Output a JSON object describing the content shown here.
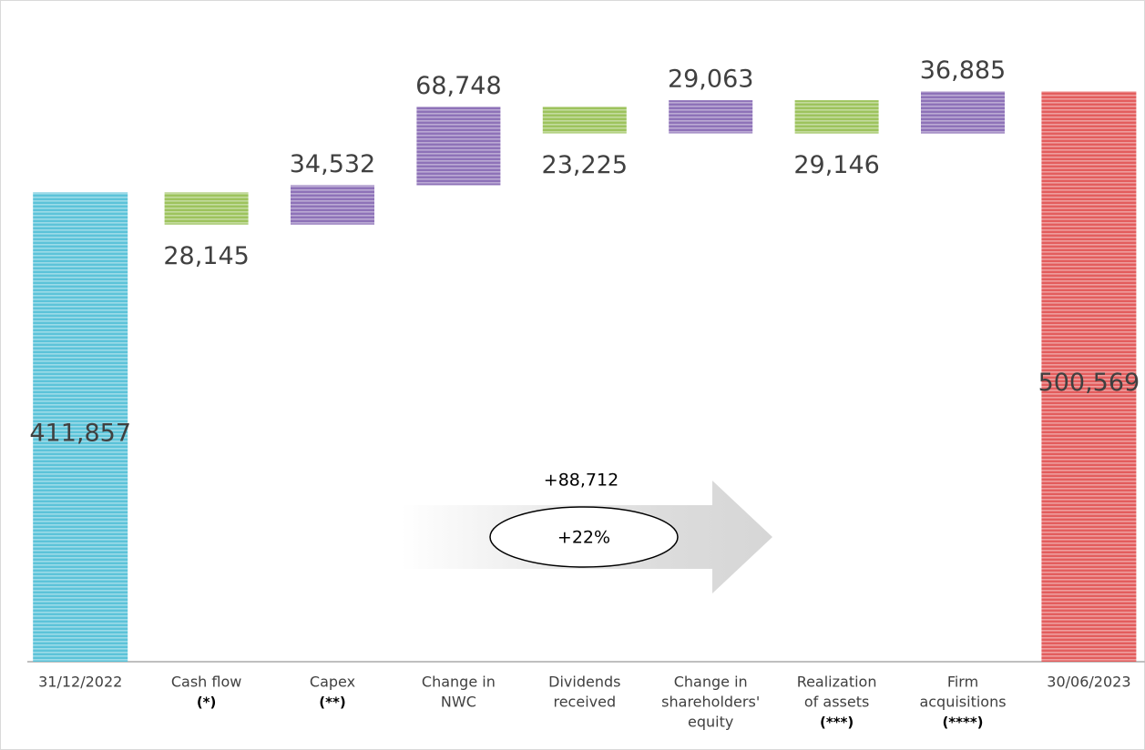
{
  "chart_data": {
    "type": "waterfall",
    "categories": [
      [
        "31/12/2022"
      ],
      [
        "Cash flow",
        "(*)"
      ],
      [
        "Capex",
        "(**)"
      ],
      [
        "Change in",
        "NWC"
      ],
      [
        "Dividends",
        "received"
      ],
      [
        "Change in",
        "shareholders'",
        "equity"
      ],
      [
        "Realization",
        "of assets",
        "(***)"
      ],
      [
        "Firm",
        "acquisitions",
        "(****)"
      ],
      [
        "30/06/2023"
      ]
    ],
    "values": [
      411857,
      -28145,
      34532,
      68748,
      -23225,
      29063,
      -29146,
      36885,
      500569
    ],
    "value_labels": [
      "411,857",
      "28,145",
      "34,532",
      "68,748",
      "23,225",
      "29,063",
      "29,146",
      "36,885",
      "500,569"
    ],
    "totals": [
      true,
      false,
      false,
      false,
      false,
      false,
      false,
      false,
      true
    ],
    "colors": [
      "#5cc3d9",
      "#9dc35d",
      "#8e72b8",
      "#8e72b8",
      "#9dc35d",
      "#8e72b8",
      "#9dc35d",
      "#8e72b8",
      "#e35d5d"
    ],
    "ylim": [
      0,
      580000
    ],
    "annotations": {
      "change": "+88,712",
      "percent": "+22%"
    }
  }
}
